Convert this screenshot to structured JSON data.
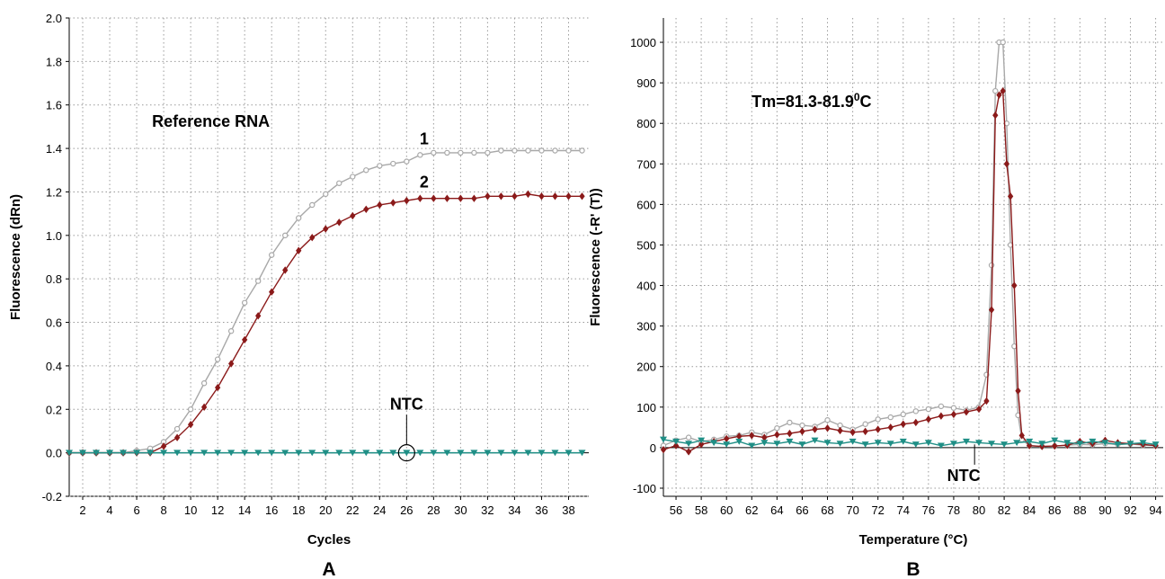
{
  "chart_data": [
    {
      "type": "line",
      "panel_label": "A",
      "xlabel": "Cycles",
      "ylabel": "Fluorescence (dRn)",
      "xlim": [
        1,
        39.5
      ],
      "ylim": [
        -0.2,
        2.0
      ],
      "x_ticks": [
        "2",
        "4",
        "6",
        "8",
        "10",
        "12",
        "14",
        "16",
        "18",
        "20",
        "22",
        "24",
        "26",
        "28",
        "30",
        "32",
        "34",
        "36",
        "38"
      ],
      "y_ticks": [
        "-0.2",
        "0.0",
        "0.2",
        "0.4",
        "0.6",
        "0.8",
        "1.0",
        "1.2",
        "1.4",
        "1.6",
        "1.8",
        "2.0"
      ],
      "grid": true,
      "annotations": [
        {
          "text": "Reference RNA",
          "x": 11.5,
          "y": 1.5
        },
        {
          "text": "1",
          "x": 27.3,
          "y": 1.42
        },
        {
          "text": "2",
          "x": 27.3,
          "y": 1.22
        },
        {
          "text": "NTC",
          "x": 26,
          "y": 0.2
        }
      ],
      "series": [
        {
          "color": "#a8a8a8",
          "marker": "circle",
          "x": [
            1,
            2,
            3,
            4,
            5,
            6,
            7,
            8,
            9,
            10,
            11,
            12,
            13,
            14,
            15,
            16,
            17,
            18,
            19,
            20,
            21,
            22,
            23,
            24,
            25,
            26,
            27,
            28,
            29,
            30,
            31,
            32,
            33,
            34,
            35,
            36,
            37,
            38,
            39
          ],
          "y": [
            0.0,
            0.0,
            0.0,
            0.0,
            0.0,
            0.01,
            0.02,
            0.05,
            0.11,
            0.2,
            0.32,
            0.43,
            0.56,
            0.69,
            0.79,
            0.91,
            1.0,
            1.08,
            1.14,
            1.19,
            1.24,
            1.27,
            1.3,
            1.32,
            1.33,
            1.34,
            1.37,
            1.38,
            1.38,
            1.38,
            1.38,
            1.38,
            1.39,
            1.39,
            1.39,
            1.39,
            1.39,
            1.39,
            1.39
          ]
        },
        {
          "color": "#8b1a1a",
          "marker": "diamond",
          "x": [
            1,
            2,
            3,
            4,
            5,
            6,
            7,
            8,
            9,
            10,
            11,
            12,
            13,
            14,
            15,
            16,
            17,
            18,
            19,
            20,
            21,
            22,
            23,
            24,
            25,
            26,
            27,
            28,
            29,
            30,
            31,
            32,
            33,
            34,
            35,
            36,
            37,
            38,
            39
          ],
          "y": [
            0.0,
            0.0,
            0.0,
            0.0,
            0.0,
            0.0,
            0.0,
            0.03,
            0.07,
            0.13,
            0.21,
            0.3,
            0.41,
            0.52,
            0.63,
            0.74,
            0.84,
            0.93,
            0.99,
            1.03,
            1.06,
            1.09,
            1.12,
            1.14,
            1.15,
            1.16,
            1.17,
            1.17,
            1.17,
            1.17,
            1.17,
            1.18,
            1.18,
            1.18,
            1.19,
            1.18,
            1.18,
            1.18,
            1.18
          ]
        },
        {
          "color": "#1f8f86",
          "marker": "triangle-down",
          "x": [
            1,
            2,
            3,
            4,
            5,
            6,
            7,
            8,
            9,
            10,
            11,
            12,
            13,
            14,
            15,
            16,
            17,
            18,
            19,
            20,
            21,
            22,
            23,
            24,
            25,
            26,
            27,
            28,
            29,
            30,
            31,
            32,
            33,
            34,
            35,
            36,
            37,
            38,
            39
          ],
          "y": [
            0.0,
            0.0,
            0.0,
            0.0,
            0.0,
            0.0,
            0.0,
            0.0,
            0.0,
            0.0,
            0.0,
            0.0,
            0.0,
            0.0,
            0.0,
            0.0,
            0.0,
            0.0,
            0.0,
            0.0,
            0.0,
            0.0,
            0.0,
            0.0,
            0.0,
            0.0,
            0.0,
            0.0,
            0.0,
            0.0,
            0.0,
            0.0,
            0.0,
            0.0,
            0.0,
            0.0,
            0.0,
            0.0,
            0.0
          ]
        }
      ]
    },
    {
      "type": "line",
      "panel_label": "B",
      "xlabel": "Temperature (°C)",
      "ylabel": "Fluorescence (-R' (T))",
      "xlim": [
        55,
        94.6
      ],
      "ylim": [
        -120,
        1060
      ],
      "x_ticks": [
        "56",
        "58",
        "60",
        "62",
        "64",
        "66",
        "68",
        "70",
        "72",
        "74",
        "76",
        "78",
        "80",
        "82",
        "84",
        "86",
        "88",
        "90",
        "92",
        "94"
      ],
      "y_ticks": [
        "-100",
        "0",
        "100",
        "200",
        "300",
        "400",
        "500",
        "600",
        "700",
        "800",
        "900",
        "1000"
      ],
      "grid": true,
      "annotations": [
        {
          "text": "Tm=81.3-81.9",
          "superscript": "0",
          "suffix": "C",
          "x": 62,
          "y": 840
        },
        {
          "text": "NTC",
          "x": 78.8,
          "y": -82
        }
      ],
      "series": [
        {
          "color": "#a8a8a8",
          "marker": "circle",
          "x": [
            55,
            56,
            57,
            58,
            59,
            60,
            61,
            62,
            63,
            64,
            65,
            66,
            67,
            68,
            69,
            70,
            71,
            72,
            73,
            74,
            75,
            76,
            77,
            78,
            79,
            80,
            80.6,
            81,
            81.3,
            81.6,
            81.9,
            82.2,
            82.5,
            82.8,
            83.1,
            83.4,
            84,
            85,
            86,
            87,
            88,
            89,
            90,
            91,
            92,
            93,
            94
          ],
          "y": [
            5,
            18,
            25,
            15,
            20,
            28,
            30,
            38,
            32,
            48,
            62,
            55,
            52,
            68,
            55,
            45,
            58,
            70,
            75,
            82,
            90,
            95,
            102,
            98,
            92,
            100,
            180,
            450,
            880,
            1000,
            1000,
            800,
            500,
            250,
            80,
            20,
            5,
            3,
            4,
            6,
            8,
            7,
            10,
            8,
            9,
            6,
            5
          ]
        },
        {
          "color": "#8b1a1a",
          "marker": "diamond",
          "x": [
            55,
            56,
            57,
            58,
            59,
            60,
            61,
            62,
            63,
            64,
            65,
            66,
            67,
            68,
            69,
            70,
            71,
            72,
            73,
            74,
            75,
            76,
            77,
            78,
            79,
            80,
            80.6,
            81,
            81.3,
            81.6,
            81.9,
            82.2,
            82.5,
            82.8,
            83.1,
            83.4,
            84,
            85,
            86,
            87,
            88,
            89,
            90,
            91,
            92,
            93,
            94
          ],
          "y": [
            -5,
            5,
            -10,
            8,
            15,
            22,
            28,
            30,
            25,
            32,
            35,
            40,
            45,
            48,
            42,
            38,
            40,
            45,
            50,
            58,
            62,
            70,
            78,
            82,
            88,
            95,
            115,
            340,
            820,
            870,
            880,
            700,
            620,
            400,
            140,
            30,
            5,
            3,
            4,
            6,
            15,
            10,
            18,
            12,
            10,
            8,
            5
          ]
        },
        {
          "color": "#1f8f86",
          "marker": "triangle-down",
          "x": [
            55,
            56,
            57,
            58,
            59,
            60,
            61,
            62,
            63,
            64,
            65,
            66,
            67,
            68,
            69,
            70,
            71,
            72,
            73,
            74,
            75,
            76,
            77,
            78,
            79,
            80,
            81,
            82,
            83,
            84,
            85,
            86,
            87,
            88,
            89,
            90,
            91,
            92,
            93,
            94
          ],
          "y": [
            20,
            15,
            10,
            18,
            12,
            8,
            15,
            5,
            12,
            10,
            15,
            8,
            18,
            12,
            10,
            15,
            8,
            12,
            10,
            15,
            8,
            12,
            5,
            10,
            15,
            12,
            10,
            8,
            12,
            15,
            10,
            18,
            12,
            10,
            15,
            12,
            8,
            10,
            12,
            8
          ]
        }
      ]
    }
  ]
}
